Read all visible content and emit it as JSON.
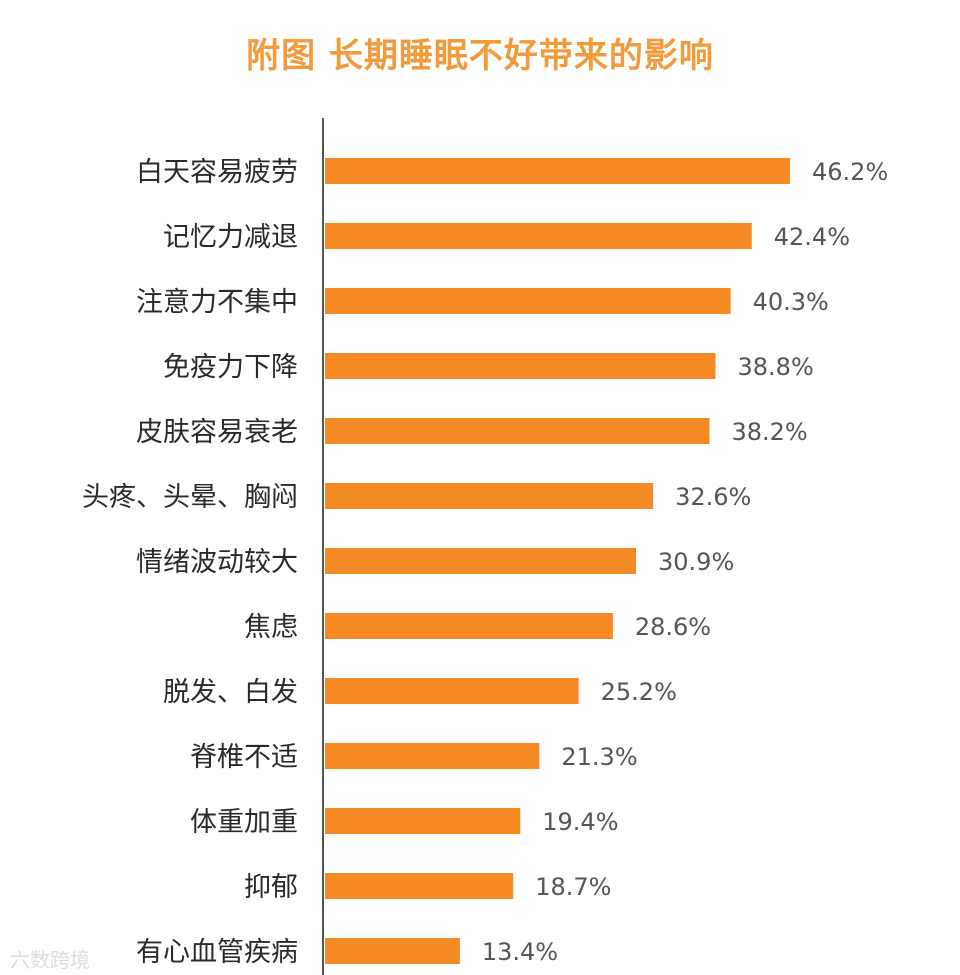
{
  "chart_data": {
    "type": "bar",
    "orientation": "horizontal",
    "title": "附图 长期睡眠不好带来的影响",
    "categories": [
      "白天容易疲劳",
      "记忆力减退",
      "注意力不集中",
      "免疫力下降",
      "皮肤容易衰老",
      "头疼、头晕、胸闷",
      "情绪波动较大",
      "焦虑",
      "脱发、白发",
      "脊椎不适",
      "体重加重",
      "抑郁",
      "有心血管疾病"
    ],
    "values": [
      46.2,
      42.4,
      40.3,
      38.8,
      38.2,
      32.6,
      30.9,
      28.6,
      25.2,
      21.3,
      19.4,
      18.7,
      13.4
    ],
    "value_labels": [
      "46.2%",
      "42.4%",
      "40.3%",
      "38.8%",
      "38.2%",
      "32.6%",
      "30.9%",
      "28.6%",
      "25.2%",
      "21.3%",
      "19.4%",
      "18.7%",
      "13.4%"
    ],
    "unit": "%",
    "bar_color": "#f58a25",
    "title_color": "#f39a3a",
    "grid": false,
    "legend": "none"
  },
  "watermark": "六数跨境"
}
